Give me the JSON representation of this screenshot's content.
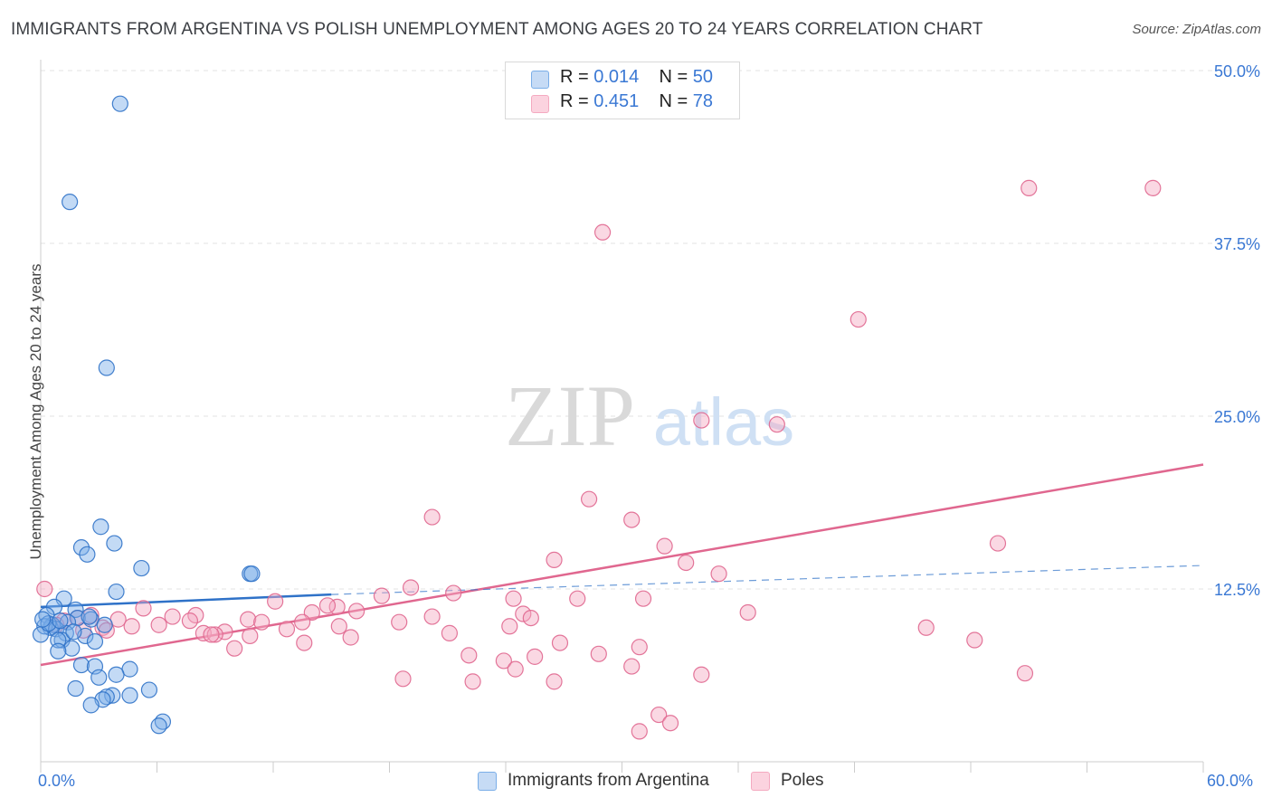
{
  "title": "IMMIGRANTS FROM ARGENTINA VS POLISH UNEMPLOYMENT AMONG AGES 20 TO 24 YEARS CORRELATION CHART",
  "source": "Source: ZipAtlas.com",
  "watermark": {
    "zip": "ZIP",
    "atlas": "atlas"
  },
  "colors": {
    "blue": "#7aaee8",
    "blue_line": "#2f72c8",
    "pink": "#f4a9c0",
    "pink_line": "#e0678f",
    "tick_text": "#3a78d4",
    "grid": "#e3e3e3"
  },
  "legend": {
    "rows": [
      {
        "r_label": "R =",
        "r_value": "0.014",
        "n_label": "N =",
        "n_value": "50"
      },
      {
        "r_label": "R =",
        "r_value": "0.451",
        "n_label": "N =",
        "n_value": "78"
      }
    ]
  },
  "bottom_legend": {
    "series1": "Immigrants from Argentina",
    "series2": "Poles"
  },
  "axes": {
    "ylabel": "Unemployment Among Ages 20 to 24 years",
    "x_min_label": "0.0%",
    "x_max_label": "60.0%",
    "y_ticks": [
      "12.5%",
      "25.0%",
      "37.5%",
      "50.0%"
    ]
  },
  "chart_data": {
    "type": "scatter",
    "title": "IMMIGRANTS FROM ARGENTINA VS POLISH UNEMPLOYMENT AMONG AGES 20 TO 24 YEARS CORRELATION CHART",
    "xlabel": "",
    "ylabel": "Unemployment Among Ages 20 to 24 years",
    "xlim": [
      0,
      60
    ],
    "ylim": [
      0,
      50
    ],
    "y_ticks": [
      12.5,
      25.0,
      37.5,
      50.0
    ],
    "grid": true,
    "legend_position": "top-center",
    "series": [
      {
        "name": "Immigrants from Argentina",
        "color": "#7aaee8",
        "R": 0.014,
        "N": 50,
        "trend": {
          "x": [
            0,
            15
          ],
          "y": [
            11.2,
            12.1
          ]
        },
        "trend_dashed": {
          "x": [
            15,
            60
          ],
          "y": [
            12.1,
            14.2
          ]
        },
        "points": [
          [
            4.1,
            47.6
          ],
          [
            1.5,
            40.5
          ],
          [
            3.4,
            28.5
          ],
          [
            3.1,
            17.0
          ],
          [
            3.8,
            15.8
          ],
          [
            2.1,
            15.5
          ],
          [
            2.4,
            15.0
          ],
          [
            5.2,
            14.0
          ],
          [
            10.8,
            13.6
          ],
          [
            10.9,
            13.6
          ],
          [
            3.9,
            12.3
          ],
          [
            1.2,
            11.8
          ],
          [
            0.7,
            11.2
          ],
          [
            1.8,
            11.0
          ],
          [
            0.3,
            10.6
          ],
          [
            1.9,
            10.4
          ],
          [
            2.6,
            10.3
          ],
          [
            1.4,
            10.1
          ],
          [
            0.6,
            9.9
          ],
          [
            0.5,
            9.7
          ],
          [
            0.2,
            9.8
          ],
          [
            3.3,
            9.9
          ],
          [
            0.8,
            9.6
          ],
          [
            1.3,
            9.3
          ],
          [
            2.3,
            9.1
          ],
          [
            1.1,
            8.8
          ],
          [
            0.9,
            8.8
          ],
          [
            2.8,
            8.7
          ],
          [
            1.6,
            8.2
          ],
          [
            0.9,
            8.0
          ],
          [
            0.0,
            9.2
          ],
          [
            2.1,
            7.0
          ],
          [
            2.8,
            6.9
          ],
          [
            4.6,
            6.7
          ],
          [
            3.0,
            6.1
          ],
          [
            3.9,
            6.3
          ],
          [
            1.8,
            5.3
          ],
          [
            5.6,
            5.2
          ],
          [
            3.7,
            4.8
          ],
          [
            4.6,
            4.8
          ],
          [
            3.4,
            4.7
          ],
          [
            3.2,
            4.5
          ],
          [
            2.6,
            4.1
          ],
          [
            6.3,
            2.9
          ],
          [
            6.1,
            2.6
          ],
          [
            0.4,
            10.0
          ],
          [
            2.5,
            10.5
          ],
          [
            1.0,
            10.2
          ],
          [
            0.1,
            10.3
          ],
          [
            1.7,
            9.4
          ]
        ]
      },
      {
        "name": "Poles",
        "color": "#f4a9c0",
        "R": 0.451,
        "N": 78,
        "trend": {
          "x": [
            0,
            60
          ],
          "y": [
            7.0,
            21.5
          ]
        },
        "points": [
          [
            51.0,
            41.5
          ],
          [
            57.4,
            41.5
          ],
          [
            29.0,
            38.3
          ],
          [
            42.2,
            32.0
          ],
          [
            34.1,
            24.7
          ],
          [
            38.0,
            24.4
          ],
          [
            28.3,
            19.0
          ],
          [
            20.2,
            17.7
          ],
          [
            30.5,
            17.5
          ],
          [
            49.4,
            15.8
          ],
          [
            32.2,
            15.6
          ],
          [
            26.5,
            14.6
          ],
          [
            33.3,
            14.4
          ],
          [
            35.0,
            13.6
          ],
          [
            19.1,
            12.6
          ],
          [
            21.3,
            12.2
          ],
          [
            17.6,
            12.0
          ],
          [
            24.4,
            11.8
          ],
          [
            27.7,
            11.8
          ],
          [
            31.1,
            11.8
          ],
          [
            12.1,
            11.6
          ],
          [
            15.3,
            11.2
          ],
          [
            5.3,
            11.1
          ],
          [
            36.5,
            10.8
          ],
          [
            14.0,
            10.8
          ],
          [
            20.2,
            10.5
          ],
          [
            16.3,
            10.9
          ],
          [
            24.9,
            10.7
          ],
          [
            8.0,
            10.6
          ],
          [
            25.3,
            10.4
          ],
          [
            6.8,
            10.5
          ],
          [
            10.7,
            10.3
          ],
          [
            11.4,
            10.1
          ],
          [
            13.5,
            10.1
          ],
          [
            18.5,
            10.1
          ],
          [
            7.7,
            10.2
          ],
          [
            2.6,
            10.6
          ],
          [
            1.9,
            10.4
          ],
          [
            4.0,
            10.3
          ],
          [
            1.2,
            10.2
          ],
          [
            0.8,
            9.9
          ],
          [
            6.1,
            9.9
          ],
          [
            15.4,
            9.8
          ],
          [
            24.2,
            9.8
          ],
          [
            3.2,
            9.7
          ],
          [
            4.7,
            9.8
          ],
          [
            3.4,
            9.5
          ],
          [
            12.7,
            9.6
          ],
          [
            2.2,
            9.5
          ],
          [
            8.4,
            9.3
          ],
          [
            21.1,
            9.3
          ],
          [
            45.7,
            9.7
          ],
          [
            9.5,
            9.4
          ],
          [
            10.8,
            9.1
          ],
          [
            16.0,
            9.0
          ],
          [
            9.0,
            9.2
          ],
          [
            8.8,
            9.2
          ],
          [
            48.2,
            8.8
          ],
          [
            26.8,
            8.6
          ],
          [
            13.6,
            8.6
          ],
          [
            30.9,
            8.3
          ],
          [
            10.0,
            8.2
          ],
          [
            22.1,
            7.7
          ],
          [
            28.8,
            7.8
          ],
          [
            25.5,
            7.6
          ],
          [
            23.9,
            7.3
          ],
          [
            30.5,
            6.9
          ],
          [
            24.5,
            6.7
          ],
          [
            34.1,
            6.3
          ],
          [
            50.8,
            6.4
          ],
          [
            18.7,
            6.0
          ],
          [
            22.3,
            5.8
          ],
          [
            26.5,
            5.8
          ],
          [
            31.9,
            3.4
          ],
          [
            32.5,
            2.8
          ],
          [
            30.9,
            2.2
          ],
          [
            0.2,
            12.5
          ],
          [
            14.8,
            11.3
          ]
        ]
      }
    ]
  }
}
